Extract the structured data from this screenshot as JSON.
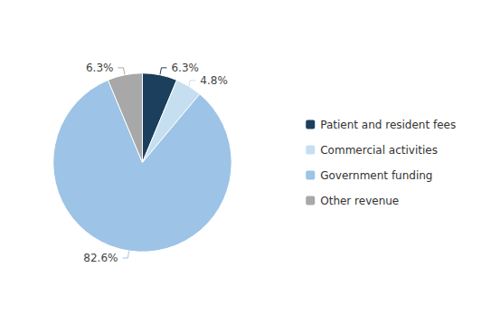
{
  "chart_data": {
    "type": "pie",
    "categories": [
      "Patient and resident fees",
      "Commercial activities",
      "Government funding",
      "Other revenue"
    ],
    "values": [
      6.3,
      4.8,
      82.6,
      6.3
    ],
    "value_labels": [
      "6.3%",
      "4.8%",
      "82.6%",
      "6.3%"
    ],
    "colors": [
      "#1c3f5e",
      "#c5dff0",
      "#9dc3e6",
      "#a8a8a8"
    ],
    "data_labels": true,
    "legend": "right"
  }
}
